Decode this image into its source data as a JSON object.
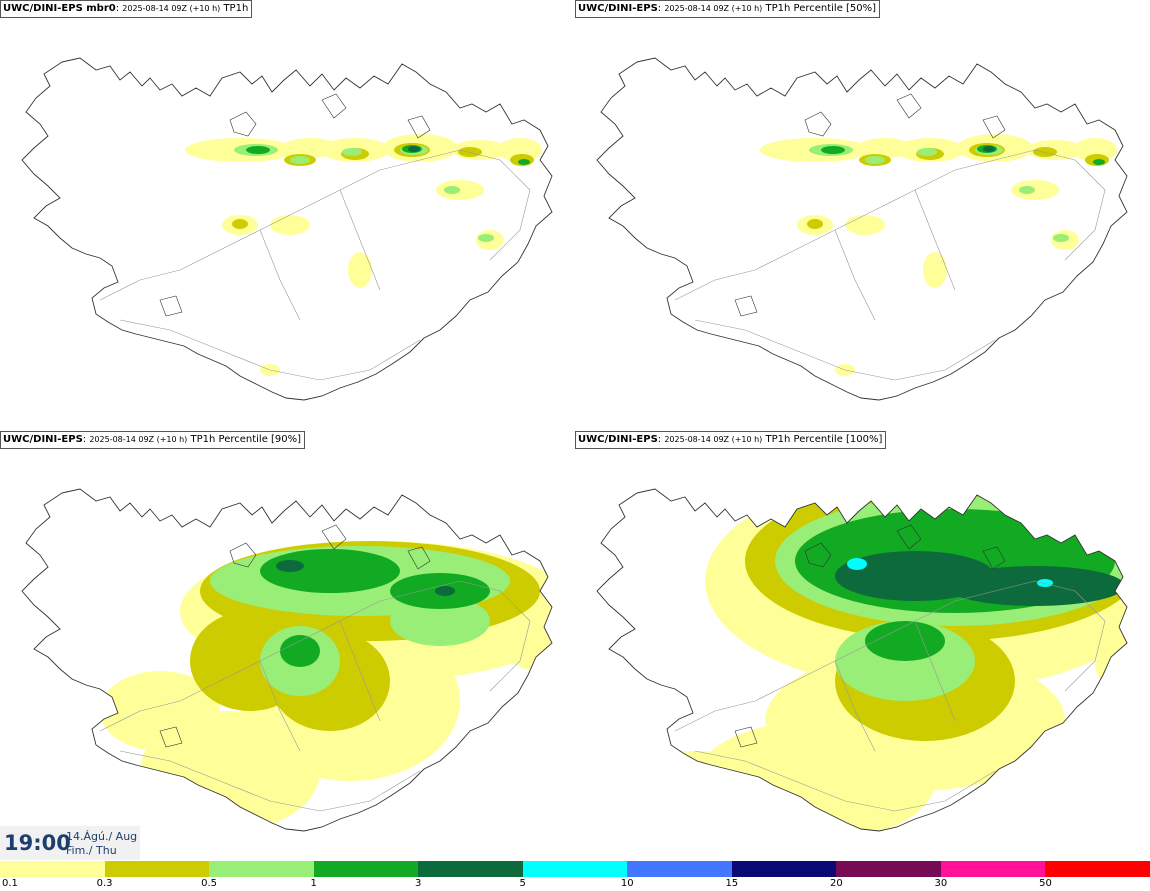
{
  "panels": [
    {
      "model": "UWC/DINI-EPS mbr0",
      "meta": "2025-08-14 09Z (+10 h)",
      "field": "TP1h",
      "coverage": "low"
    },
    {
      "model": "UWC/DINI-EPS",
      "meta": "2025-08-14 09Z (+10 h)",
      "field": "TP1h Percentile [50%]",
      "coverage": "low"
    },
    {
      "model": "UWC/DINI-EPS",
      "meta": "2025-08-14 09Z (+10 h)",
      "field": "TP1h Percentile [90%]",
      "coverage": "medium"
    },
    {
      "model": "UWC/DINI-EPS",
      "meta": "2025-08-14 09Z (+10 h)",
      "field": "TP1h Percentile [100%]",
      "coverage": "high"
    }
  ],
  "valid_time": {
    "hour": "19:00",
    "date": "14.Ágú./ Aug",
    "day": "Fim./ Thu"
  },
  "legend": {
    "colors": [
      "#ffff99",
      "#cccc00",
      "#99ee77",
      "#11aa22",
      "#0d6a3c",
      "#00ffff",
      "#4477ff",
      "#0a0a77",
      "#770a55",
      "#ff1199",
      "#ff0000"
    ],
    "ticks": [
      "0.1",
      "0.3",
      "0.5",
      "1",
      "3",
      "5",
      "10",
      "15",
      "20",
      "30",
      "50"
    ]
  },
  "colors": {
    "coastline": "#333333",
    "time_text": "#1d3f6e"
  }
}
